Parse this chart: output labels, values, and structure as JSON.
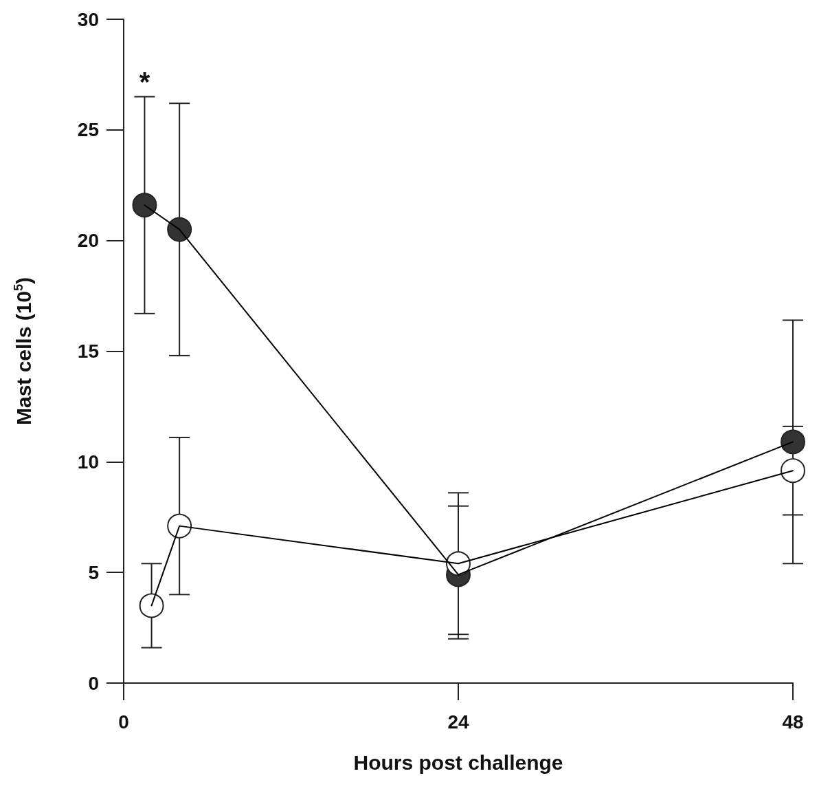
{
  "chart_data": {
    "type": "line",
    "xlabel": "Hours post challenge",
    "ylabel": "Mast cells (10$^{5}$)",
    "xlim": [
      0,
      48
    ],
    "xticks": [
      0,
      24,
      48
    ],
    "ylim": [
      0,
      30
    ],
    "yticks": [
      0,
      5,
      10,
      15,
      20,
      25,
      30
    ],
    "grid": false,
    "marker": "circle",
    "line_style": "solid",
    "annotations": [
      "*"
    ],
    "series": [
      {
        "color": "#333333",
        "x": [
          1.5,
          4,
          24,
          48
        ],
        "values": [
          21.6,
          20.5,
          4.9,
          10.9
        ],
        "errors": [
          [
            16.7,
            26.5
          ],
          [
            14.8,
            26.2
          ],
          [
            2.0,
            8.6
          ],
          [
            5.4,
            16.4
          ]
        ]
      },
      {
        "color": "#ffffff",
        "x": [
          2,
          4,
          24,
          48
        ],
        "values": [
          3.5,
          7.1,
          5.4,
          9.6
        ],
        "errors": [
          [
            1.6,
            5.4
          ],
          [
            4.0,
            11.1
          ],
          [
            2.2,
            8.0
          ],
          [
            7.6,
            11.6
          ]
        ]
      }
    ]
  }
}
